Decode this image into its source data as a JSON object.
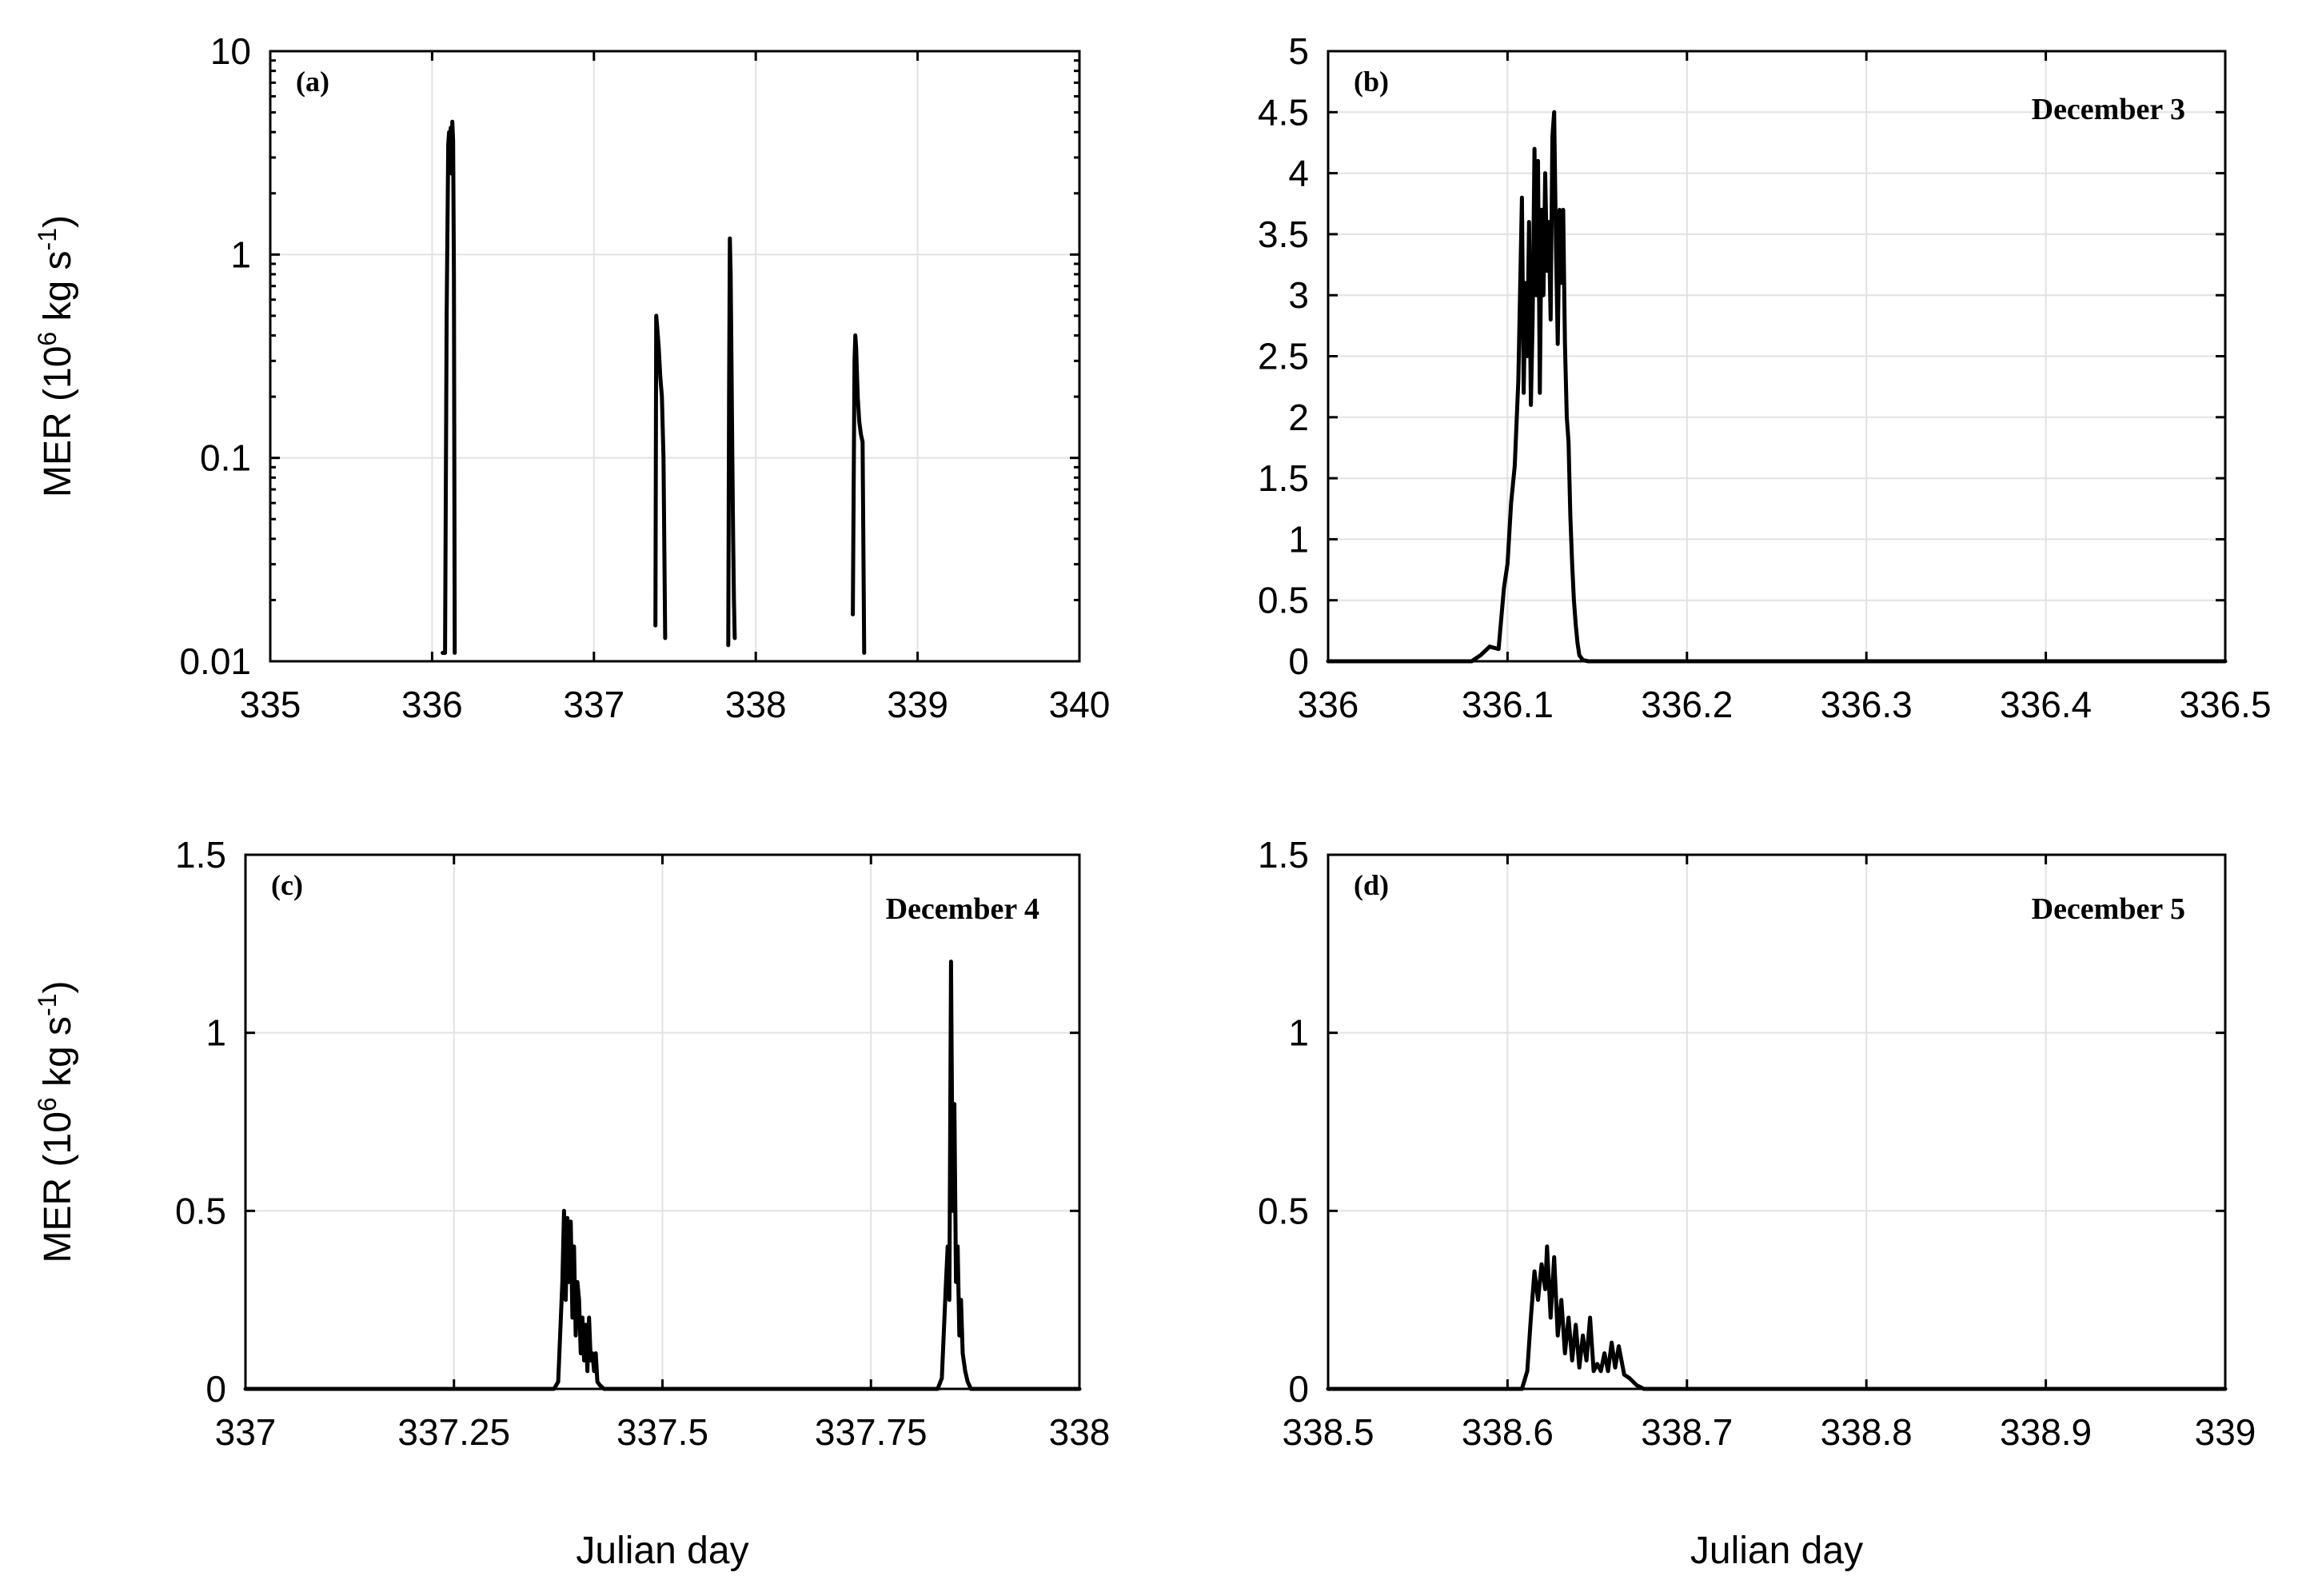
{
  "chart_data": [
    {
      "id": "a",
      "type": "line",
      "panel_label": "(a)",
      "annotation": "",
      "xlabel": "",
      "ylabel": "MER (10^6 kg s^-1)",
      "ylabel_parts": {
        "base": "MER (10",
        "exp1": "6",
        "mid": " kg s",
        "exp2": "-1",
        "end": ")"
      },
      "xlim": [
        335,
        340
      ],
      "ylim": [
        0.01,
        10
      ],
      "yscale": "log",
      "xticks": [
        335,
        336,
        337,
        338,
        339,
        340
      ],
      "yticks": [
        0.01,
        0.1,
        1,
        10
      ],
      "xtick_labels": [
        "335",
        "336",
        "337",
        "338",
        "339",
        "340"
      ],
      "ytick_labels": [
        "0.01",
        "0.1",
        "1",
        "10"
      ],
      "grid": true,
      "series": [
        {
          "x": [
            336.065,
            336.08,
            336.09,
            336.1,
            336.105,
            336.11,
            336.115,
            336.12,
            336.125,
            336.13,
            336.135,
            336.14
          ],
          "y": [
            0.011,
            0.011,
            0.5,
            3.5,
            4.0,
            3.0,
            4.2,
            2.5,
            4.5,
            3.6,
            0.8,
            0.011
          ]
        },
        {
          "x": [
            337.38,
            337.385,
            337.39,
            337.4,
            337.41,
            337.42,
            337.43,
            337.44
          ],
          "y": [
            0.015,
            0.5,
            0.45,
            0.35,
            0.25,
            0.2,
            0.1,
            0.013
          ]
        },
        {
          "x": [
            337.83,
            337.835,
            337.84,
            337.845,
            337.85,
            337.855,
            337.86,
            337.865,
            337.87
          ],
          "y": [
            0.012,
            0.2,
            1.2,
            0.8,
            0.3,
            0.1,
            0.04,
            0.02,
            0.013
          ]
        },
        {
          "x": [
            338.6,
            338.61,
            338.615,
            338.62,
            338.63,
            338.64,
            338.65,
            338.66,
            338.67
          ],
          "y": [
            0.017,
            0.3,
            0.4,
            0.35,
            0.2,
            0.15,
            0.13,
            0.12,
            0.011
          ]
        }
      ]
    },
    {
      "id": "b",
      "type": "line",
      "panel_label": "(b)",
      "annotation": "December 3",
      "xlabel": "",
      "ylabel": "",
      "xlim": [
        336,
        336.5
      ],
      "ylim": [
        0,
        5
      ],
      "yscale": "linear",
      "xticks": [
        336,
        336.1,
        336.2,
        336.3,
        336.4,
        336.5
      ],
      "yticks": [
        0,
        0.5,
        1,
        1.5,
        2,
        2.5,
        3,
        3.5,
        4,
        4.5,
        5
      ],
      "xtick_labels": [
        "336",
        "336.1",
        "336.2",
        "336.3",
        "336.4",
        "336.5"
      ],
      "ytick_labels": [
        "0",
        "0.5",
        "1",
        "1.5",
        "2",
        "2.5",
        "3",
        "3.5",
        "4",
        "4.5",
        "5"
      ],
      "grid": true,
      "series": [
        {
          "x": [
            336.0,
            336.08,
            336.085,
            336.09,
            336.095,
            336.098,
            336.1,
            336.102,
            336.104,
            336.106,
            336.108,
            336.109,
            336.11,
            336.111,
            336.112,
            336.113,
            336.114,
            336.115,
            336.116,
            336.117,
            336.118,
            336.119,
            336.12,
            336.121,
            336.122,
            336.123,
            336.124,
            336.125,
            336.126,
            336.127,
            336.128,
            336.129,
            336.13,
            336.131,
            336.132,
            336.133,
            336.134,
            336.135,
            336.136,
            336.137,
            336.138,
            336.139,
            336.14,
            336.142,
            336.145,
            336.15,
            336.5
          ],
          "y": [
            0,
            0,
            0.05,
            0.12,
            0.1,
            0.6,
            0.8,
            1.3,
            1.6,
            2.3,
            3.8,
            2.2,
            3.1,
            2.5,
            3.6,
            2.1,
            2.8,
            4.2,
            3.0,
            4.1,
            2.2,
            3.7,
            3.0,
            4.0,
            3.2,
            3.6,
            2.8,
            4.3,
            4.5,
            3.4,
            2.6,
            3.7,
            3.1,
            3.7,
            2.6,
            2.0,
            1.8,
            1.2,
            0.8,
            0.5,
            0.3,
            0.15,
            0.05,
            0.01,
            0,
            0,
            0
          ]
        }
      ]
    },
    {
      "id": "c",
      "type": "line",
      "panel_label": "(c)",
      "annotation": "December 4",
      "xlabel": "Julian day",
      "ylabel": "MER (10^6 kg s^-1)",
      "ylabel_parts": {
        "base": "MER (10",
        "exp1": "6",
        "mid": " kg s",
        "exp2": "-1",
        "end": ")"
      },
      "xlim": [
        337,
        338
      ],
      "ylim": [
        0,
        1.5
      ],
      "yscale": "linear",
      "xticks": [
        337,
        337.25,
        337.5,
        337.75,
        338
      ],
      "yticks": [
        0,
        0.5,
        1,
        1.5
      ],
      "xtick_labels": [
        "337",
        "337.25",
        "337.5",
        "337.75",
        "338"
      ],
      "ytick_labels": [
        "0",
        "0.5",
        "1",
        "1.5"
      ],
      "grid": true,
      "series": [
        {
          "x": [
            337.0,
            337.37,
            337.375,
            337.38,
            337.382,
            337.384,
            337.386,
            337.388,
            337.39,
            337.392,
            337.394,
            337.396,
            337.398,
            337.4,
            337.402,
            337.404,
            337.406,
            337.408,
            337.41,
            337.412,
            337.414,
            337.416,
            337.418,
            337.42,
            337.422,
            337.425,
            337.43,
            337.83,
            337.835,
            337.84,
            337.842,
            337.844,
            337.846,
            337.848,
            337.85,
            337.852,
            337.854,
            337.856,
            337.858,
            337.86,
            337.863,
            337.866,
            337.87,
            338.0
          ],
          "y": [
            0,
            0,
            0.02,
            0.3,
            0.5,
            0.25,
            0.48,
            0.3,
            0.47,
            0.2,
            0.4,
            0.15,
            0.3,
            0.25,
            0.1,
            0.2,
            0.08,
            0.18,
            0.05,
            0.2,
            0.08,
            0.1,
            0.05,
            0.1,
            0.02,
            0.01,
            0,
            0,
            0.03,
            0.3,
            0.4,
            0.25,
            1.2,
            0.5,
            0.8,
            0.3,
            0.4,
            0.15,
            0.25,
            0.1,
            0.05,
            0.02,
            0,
            0
          ]
        }
      ]
    },
    {
      "id": "d",
      "type": "line",
      "panel_label": "(d)",
      "annotation": "December 5",
      "xlabel": "Julian day",
      "ylabel": "",
      "xlim": [
        338.5,
        339
      ],
      "ylim": [
        0,
        1.5
      ],
      "yscale": "linear",
      "xticks": [
        338.5,
        338.6,
        338.7,
        338.8,
        338.9,
        339
      ],
      "yticks": [
        0,
        0.5,
        1,
        1.5
      ],
      "xtick_labels": [
        "338.5",
        "338.6",
        "338.7",
        "338.8",
        "338.9",
        "339"
      ],
      "ytick_labels": [
        "0",
        "0.5",
        "1",
        "1.5"
      ],
      "grid": true,
      "series": [
        {
          "x": [
            338.5,
            338.608,
            338.611,
            338.613,
            338.615,
            338.617,
            338.619,
            338.621,
            338.622,
            338.624,
            338.626,
            338.628,
            338.63,
            338.632,
            338.634,
            338.636,
            338.638,
            338.64,
            338.642,
            338.644,
            338.646,
            338.648,
            338.65,
            338.652,
            338.654,
            338.656,
            338.658,
            338.66,
            338.662,
            338.665,
            338.668,
            338.672,
            338.676,
            339.0
          ],
          "y": [
            0,
            0,
            0.05,
            0.2,
            0.33,
            0.25,
            0.35,
            0.28,
            0.4,
            0.2,
            0.37,
            0.15,
            0.25,
            0.1,
            0.2,
            0.08,
            0.18,
            0.06,
            0.15,
            0.08,
            0.2,
            0.05,
            0.07,
            0.05,
            0.1,
            0.05,
            0.13,
            0.06,
            0.12,
            0.04,
            0.03,
            0.01,
            0,
            0
          ]
        }
      ]
    }
  ]
}
